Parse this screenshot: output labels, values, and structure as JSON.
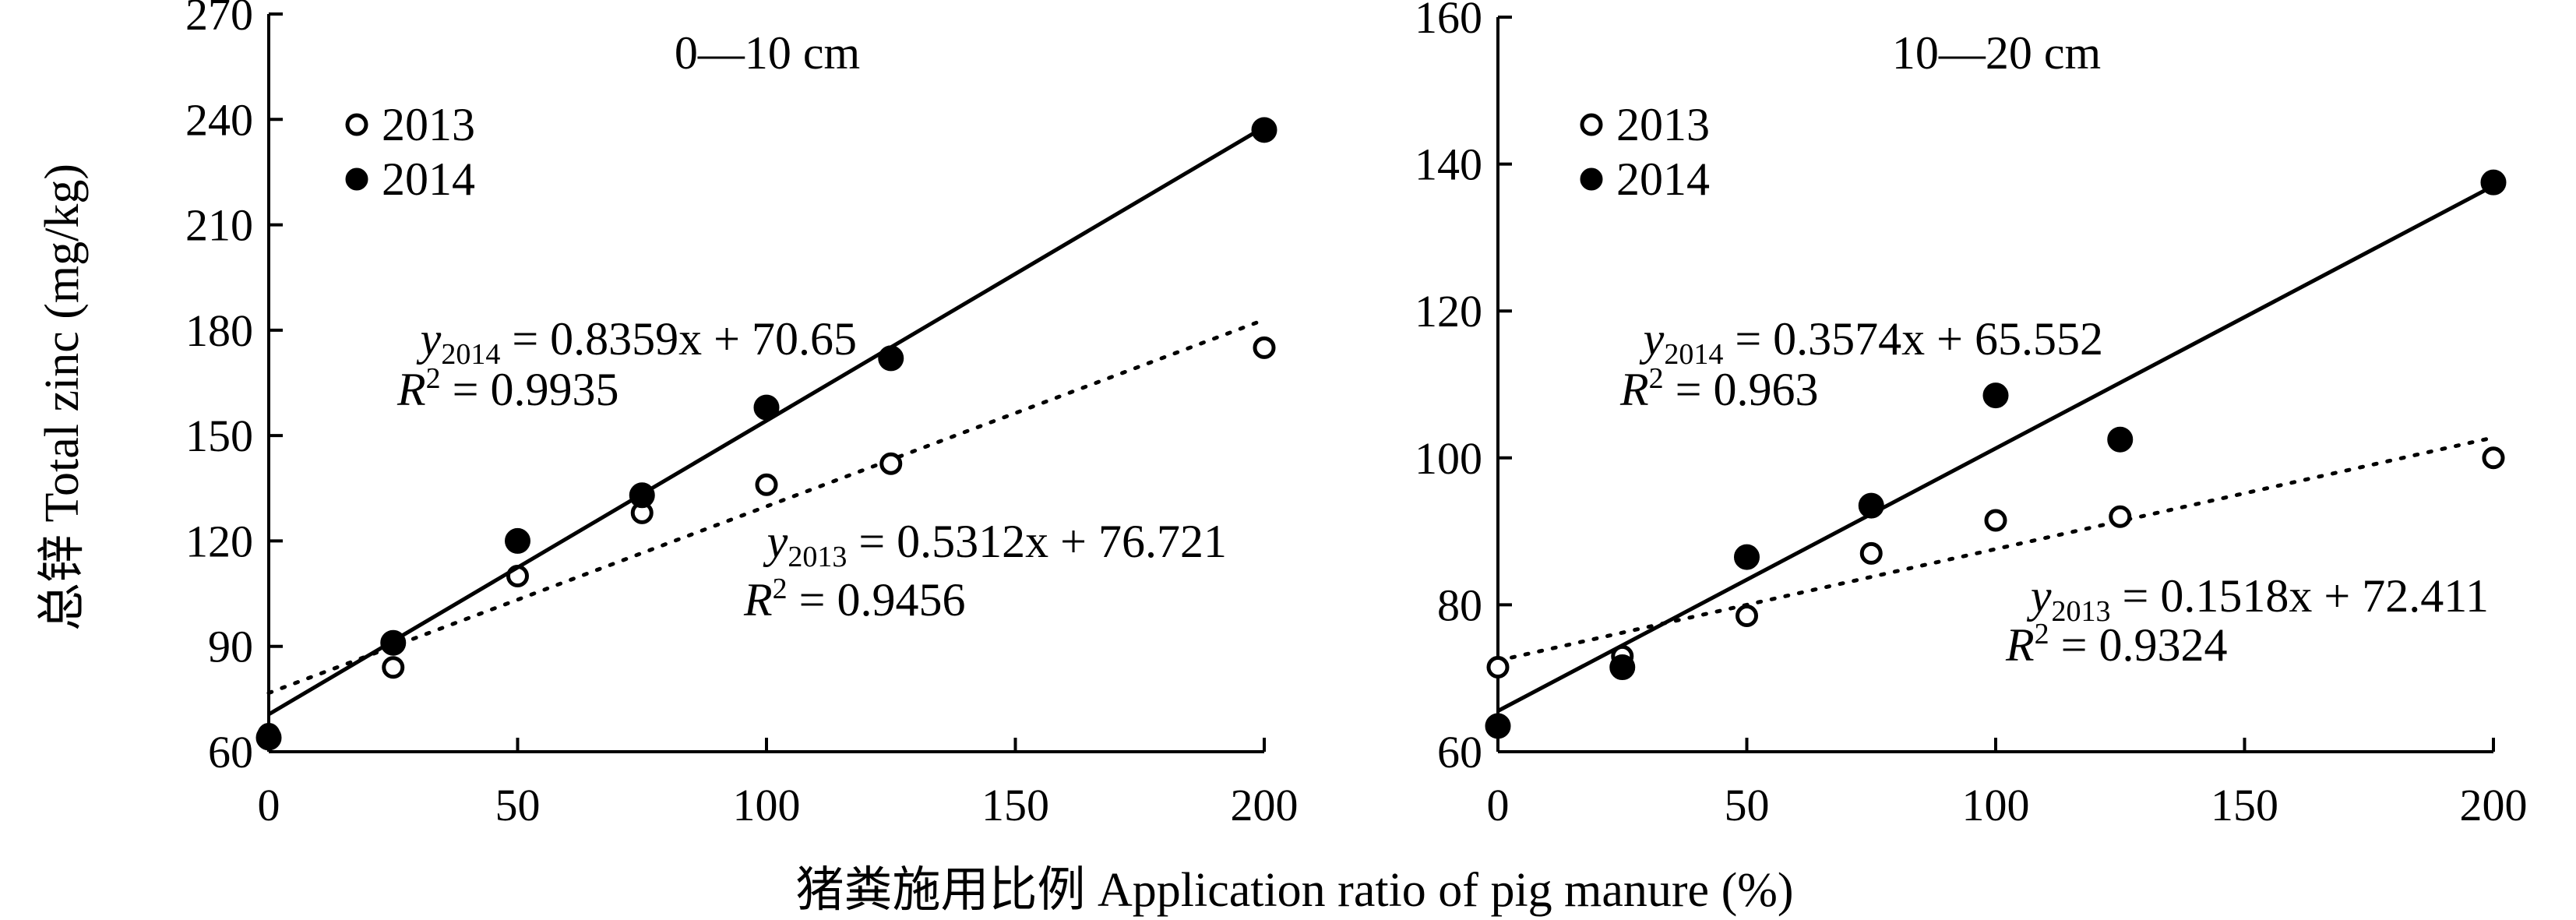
{
  "figure": {
    "ylabel": "总锌 Total zinc (mg/kg)",
    "xlabel": "猪粪施用比例 Application ratio of pig manure (%)"
  },
  "chart_data": [
    {
      "type": "scatter",
      "panel_title": "0—10 cm",
      "x_ticks": [
        "0",
        "50",
        "100",
        "150",
        "200"
      ],
      "y_ticks": [
        "60",
        "90",
        "120",
        "150",
        "180",
        "210",
        "240",
        "270"
      ],
      "xlim": [
        0,
        200
      ],
      "ylim": [
        60,
        270
      ],
      "legend": {
        "placement": "top-left",
        "entries": [
          "2013",
          "2014"
        ]
      },
      "series": [
        {
          "name": "2013",
          "marker": "open-circle",
          "x": [
            0,
            25,
            50,
            75,
            100,
            125,
            200
          ],
          "y": [
            65,
            84,
            110,
            128,
            136,
            142,
            175
          ],
          "fit": {
            "slope": 0.5312,
            "intercept": 76.721,
            "style": "dotted"
          },
          "equation": {
            "sub": "2013",
            "rhs": " = 0.5312x + 76.721",
            "r2": " = 0.9456"
          }
        },
        {
          "name": "2014",
          "marker": "filled-circle",
          "x": [
            0,
            25,
            50,
            75,
            100,
            125,
            200
          ],
          "y": [
            64,
            91,
            120,
            133,
            158,
            172,
            237
          ],
          "fit": {
            "slope": 0.8359,
            "intercept": 70.65,
            "style": "solid"
          },
          "equation": {
            "sub": "2014",
            "rhs": " = 0.8359x + 70.65",
            "r2": " = 0.9935"
          }
        }
      ]
    },
    {
      "type": "scatter",
      "panel_title": "10—20 cm",
      "x_ticks": [
        "0",
        "50",
        "100",
        "150",
        "200"
      ],
      "y_ticks": [
        "60",
        "80",
        "100",
        "120",
        "140",
        "160"
      ],
      "xlim": [
        0,
        200
      ],
      "ylim": [
        60,
        160
      ],
      "legend": {
        "placement": "top-left",
        "entries": [
          "2013",
          "2014"
        ]
      },
      "series": [
        {
          "name": "2013",
          "marker": "open-circle",
          "x": [
            0,
            25,
            50,
            75,
            100,
            125,
            200
          ],
          "y": [
            71.5,
            73,
            78.5,
            87,
            91.5,
            92,
            100
          ],
          "fit": {
            "slope": 0.1518,
            "intercept": 72.411,
            "style": "dotted"
          },
          "equation": {
            "sub": "2013",
            "rhs": " = 0.1518x + 72.411",
            "r2": " = 0.9324"
          }
        },
        {
          "name": "2014",
          "marker": "filled-circle",
          "x": [
            0,
            25,
            50,
            75,
            100,
            125,
            200
          ],
          "y": [
            63.5,
            71.5,
            86.5,
            93.5,
            108.5,
            102.5,
            137.5
          ],
          "fit": {
            "slope": 0.3574,
            "intercept": 65.552,
            "style": "solid"
          },
          "equation": {
            "sub": "2014",
            "rhs": " = 0.3574x + 65.552",
            "r2": " = 0.963"
          }
        }
      ]
    }
  ]
}
